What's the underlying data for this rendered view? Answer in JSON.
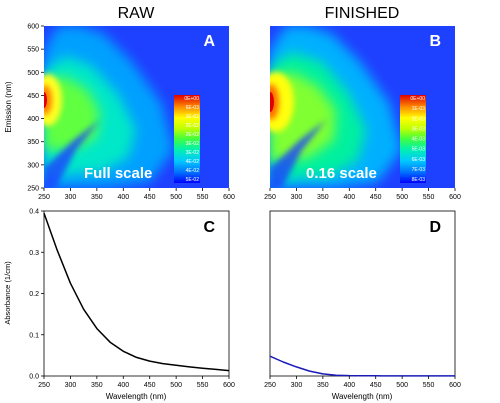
{
  "headers": {
    "left": "RAW",
    "right": "FINISHED"
  },
  "colors": {
    "panel_bg": "#1e40ff",
    "line_c": "#000000",
    "line_d": "#1a1ab8",
    "colormap": [
      "#0000ff",
      "#0055ff",
      "#00b0ff",
      "#00e0d0",
      "#30ff70",
      "#a0ff20",
      "#ffff00",
      "#ffb000",
      "#ff5000",
      "#e00000"
    ]
  },
  "chart_data": [
    {
      "id": "A",
      "type": "heatmap",
      "panel_label": "A",
      "annotation": "Full scale",
      "xlabel": "",
      "ylabel": "Emission (nm)",
      "xlim": [
        250,
        600
      ],
      "ylim": [
        250,
        600
      ],
      "xticks": [
        "250",
        "300",
        "350",
        "400",
        "450",
        "500",
        "550",
        "600"
      ],
      "yticks": [
        "250",
        "300",
        "350",
        "400",
        "450",
        "500",
        "550",
        "600"
      ],
      "colorbar_labels": [
        "0E+00",
        "6E-03",
        "1E-02",
        "2E-02",
        "2E-02",
        "3E-02",
        "3E-02",
        "4E-02",
        "4E-02",
        "5E-02"
      ],
      "peak": {
        "excitation": 252,
        "emission": 445
      }
    },
    {
      "id": "B",
      "type": "heatmap",
      "panel_label": "B",
      "annotation": "0.16 scale",
      "xlabel": "",
      "ylabel": "",
      "xlim": [
        250,
        600
      ],
      "ylim": [
        250,
        600
      ],
      "xticks": [
        "250",
        "300",
        "350",
        "400",
        "450",
        "500",
        "550",
        "600"
      ],
      "yticks": [],
      "colorbar_labels": [
        "0E+00",
        "1E-03",
        "2E-03",
        "3E-03",
        "4E-03",
        "5E-03",
        "6E-03",
        "7E-03",
        "8E-03"
      ],
      "peak": {
        "excitation": 252,
        "emission": 440
      }
    },
    {
      "id": "C",
      "type": "line",
      "panel_label": "C",
      "xlabel": "Wavelength (nm)",
      "ylabel": "Absorbance (1/cm)",
      "xlim": [
        250,
        600
      ],
      "ylim": [
        0,
        0.4
      ],
      "xticks": [
        "250",
        "300",
        "350",
        "400",
        "450",
        "500",
        "550",
        "600"
      ],
      "yticks": [
        "0.0",
        "0.1",
        "0.2",
        "0.3",
        "0.4"
      ],
      "series": [
        {
          "x": [
            250,
            275,
            300,
            325,
            350,
            375,
            400,
            425,
            450,
            475,
            500,
            525,
            550,
            575,
            600
          ],
          "y": [
            0.395,
            0.305,
            0.225,
            0.162,
            0.115,
            0.082,
            0.06,
            0.045,
            0.036,
            0.03,
            0.026,
            0.022,
            0.019,
            0.016,
            0.013
          ]
        }
      ]
    },
    {
      "id": "D",
      "type": "line",
      "panel_label": "D",
      "xlabel": "Wavelength (nm)",
      "ylabel": "",
      "xlim": [
        250,
        600
      ],
      "ylim": [
        0,
        0.4
      ],
      "xticks": [
        "250",
        "300",
        "350",
        "400",
        "450",
        "500",
        "550",
        "600"
      ],
      "yticks": [],
      "series": [
        {
          "x": [
            250,
            275,
            300,
            325,
            350,
            375,
            400,
            450,
            500,
            550,
            600
          ],
          "y": [
            0.048,
            0.034,
            0.022,
            0.012,
            0.005,
            0.002,
            0.001,
            0.0005,
            0.0003,
            0.0002,
            0.0002
          ]
        }
      ]
    }
  ]
}
